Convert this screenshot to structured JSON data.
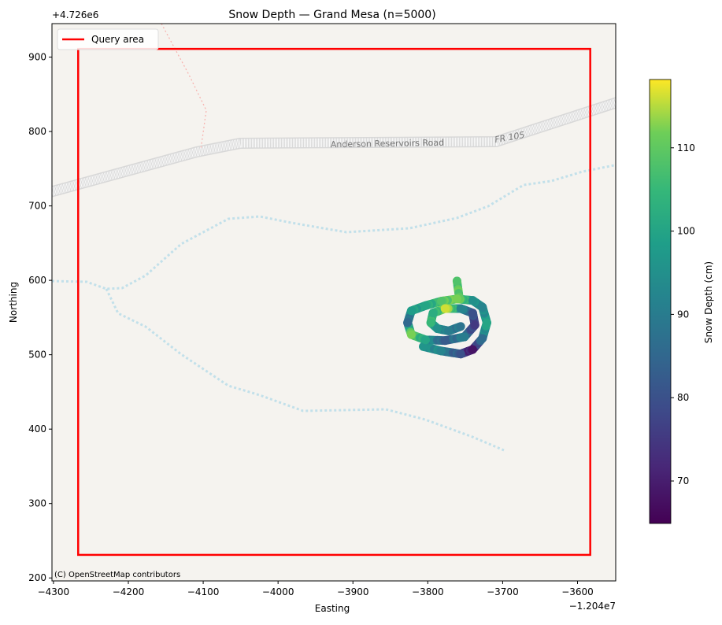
{
  "chart_data": {
    "type": "scatter",
    "title": "Snow Depth — Grand Mesa (n=5000)",
    "xlabel": "Easting",
    "ylabel": "Northing",
    "x_offset_label": "−1.204e7",
    "y_offset_label": "+4.726e6",
    "xlim": [
      -4302,
      -3549
    ],
    "ylim": [
      196,
      945
    ],
    "xticks": [
      -4300,
      -4200,
      -4100,
      -4000,
      -3900,
      -3800,
      -3700,
      -3600
    ],
    "yticks": [
      200,
      300,
      400,
      500,
      600,
      700,
      800,
      900
    ],
    "grid": false,
    "legend": {
      "placement": "top-left",
      "entries": [
        {
          "label": "Query area",
          "color": "#ff0000"
        }
      ]
    },
    "query_area": {
      "x": [
        -4267,
        -3583
      ],
      "y": [
        231,
        911
      ],
      "color": "#ff0000"
    },
    "colorbar": {
      "label": "Snow Depth (cm)",
      "range": [
        64.9,
        118.2
      ],
      "ticks": [
        70,
        80,
        90,
        100,
        110
      ],
      "colormap": "viridis"
    },
    "track": [
      {
        "x": -3761,
        "y": 599,
        "v": 108
      },
      {
        "x": -3758,
        "y": 577,
        "v": 110
      },
      {
        "x": -3806,
        "y": 511,
        "v": 96
      },
      {
        "x": -3782,
        "y": 505,
        "v": 92
      },
      {
        "x": -3756,
        "y": 501,
        "v": 80
      },
      {
        "x": -3740,
        "y": 507,
        "v": 68
      },
      {
        "x": -3727,
        "y": 522,
        "v": 86
      },
      {
        "x": -3721,
        "y": 543,
        "v": 100
      },
      {
        "x": -3727,
        "y": 564,
        "v": 92
      },
      {
        "x": -3740,
        "y": 573,
        "v": 95
      },
      {
        "x": -3761,
        "y": 575,
        "v": 112
      },
      {
        "x": -3782,
        "y": 572,
        "v": 108
      },
      {
        "x": -3803,
        "y": 566,
        "v": 100
      },
      {
        "x": -3822,
        "y": 559,
        "v": 98
      },
      {
        "x": -3827,
        "y": 543,
        "v": 85
      },
      {
        "x": -3822,
        "y": 527,
        "v": 112
      },
      {
        "x": -3803,
        "y": 520,
        "v": 100
      },
      {
        "x": -3777,
        "y": 519,
        "v": 82
      },
      {
        "x": -3751,
        "y": 524,
        "v": 90
      },
      {
        "x": -3737,
        "y": 540,
        "v": 75
      },
      {
        "x": -3740,
        "y": 556,
        "v": 80
      },
      {
        "x": -3756,
        "y": 562,
        "v": 92
      },
      {
        "x": -3777,
        "y": 562,
        "v": 116
      },
      {
        "x": -3793,
        "y": 556,
        "v": 102
      },
      {
        "x": -3796,
        "y": 543,
        "v": 105
      },
      {
        "x": -3787,
        "y": 535,
        "v": 95
      },
      {
        "x": -3772,
        "y": 532,
        "v": 90
      },
      {
        "x": -3756,
        "y": 538,
        "v": 88
      }
    ]
  },
  "basemap": {
    "road_label": "Anderson Reservoirs Road",
    "route_label": "FR 105",
    "attribution": "(C) OpenStreetMap contributors"
  }
}
